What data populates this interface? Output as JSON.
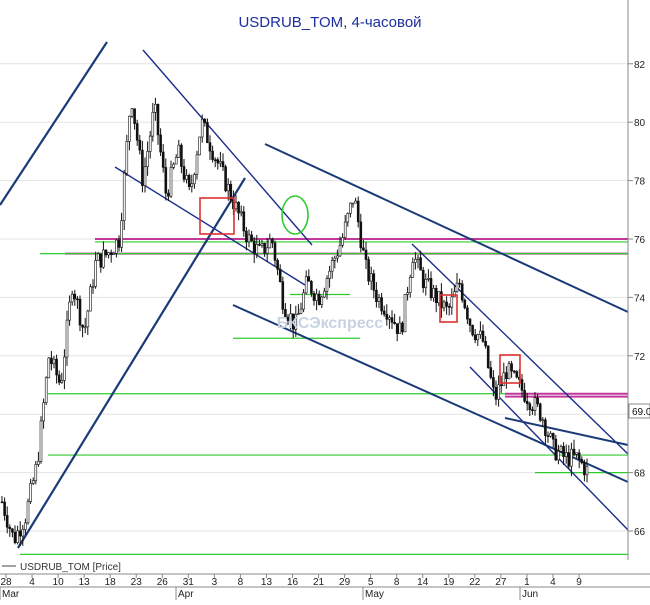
{
  "chart_data": {
    "type": "candlestick",
    "title": "USDRUB_TOM, 4-часовой",
    "watermark": "БКСЭкспресс",
    "legend": "USDRUB_TOM [Price]",
    "last_price_label": "69.0",
    "y_axis": {
      "range": [
        64.8,
        83.2
      ],
      "ticks": [
        66,
        68,
        70,
        72,
        74,
        76,
        78,
        80,
        82
      ]
    },
    "x_axis": {
      "day_ticks": [
        "28",
        "4",
        "10",
        "13",
        "18",
        "23",
        "26",
        "31",
        "3",
        "8",
        "13",
        "16",
        "21",
        "29",
        "5",
        "8",
        "14",
        "19",
        "22",
        "27",
        "1",
        "4",
        "9"
      ],
      "month_labels": [
        "Mar",
        "Apr",
        "May",
        "Jun"
      ]
    },
    "price_path": [
      [
        0,
        67.0
      ],
      [
        1,
        65.7
      ],
      [
        2,
        66.5
      ],
      [
        3,
        68.3
      ],
      [
        4,
        72.0
      ],
      [
        5,
        71.0
      ],
      [
        6,
        74.5
      ],
      [
        7,
        72.8
      ],
      [
        8,
        75.2
      ],
      [
        9,
        75.5
      ],
      [
        10,
        76.0
      ],
      [
        11,
        81.0
      ],
      [
        12,
        78.0
      ],
      [
        13,
        80.5
      ],
      [
        14,
        77.5
      ],
      [
        15,
        79.0
      ],
      [
        16,
        77.5
      ],
      [
        17,
        80.0
      ],
      [
        18,
        79.0
      ],
      [
        19,
        78.0
      ],
      [
        20,
        77.0
      ],
      [
        21,
        76.0
      ],
      [
        22,
        75.5
      ],
      [
        23,
        76.0
      ],
      [
        24,
        73.8
      ],
      [
        25,
        73.0
      ],
      [
        26,
        74.5
      ],
      [
        27,
        74.0
      ],
      [
        28,
        75.0
      ],
      [
        29,
        76.0
      ],
      [
        30,
        77.5
      ],
      [
        31,
        75.0
      ],
      [
        32,
        74.0
      ],
      [
        33,
        73.5
      ],
      [
        34,
        72.8
      ],
      [
        35,
        75.5
      ],
      [
        36,
        74.5
      ],
      [
        37,
        74.0
      ],
      [
        38,
        73.5
      ],
      [
        39,
        74.5
      ],
      [
        40,
        73.0
      ],
      [
        41,
        72.5
      ],
      [
        42,
        70.5
      ],
      [
        43,
        71.5
      ],
      [
        44,
        71.0
      ],
      [
        45,
        70.5
      ],
      [
        46,
        70.0
      ],
      [
        47,
        68.8
      ],
      [
        48,
        68.5
      ],
      [
        49,
        68.5
      ],
      [
        50,
        68.0
      ],
      [
        51,
        68.8
      ],
      [
        52,
        68.5
      ]
    ],
    "levels": [
      {
        "y": 76.0,
        "color": "#c0399a"
      },
      {
        "y": 75.9,
        "color": "#2fcc2f"
      },
      {
        "y": 75.5,
        "color": "#c0399a"
      },
      {
        "y": 75.5,
        "color": "#2fcc2f"
      },
      {
        "y": 74.1,
        "color": "#2fcc2f"
      },
      {
        "y": 72.6,
        "color": "#2fcc2f"
      },
      {
        "y": 70.7,
        "color": "#2fcc2f"
      },
      {
        "y": 70.7,
        "color": "#c0399a"
      },
      {
        "y": 70.6,
        "color": "#c0399a"
      },
      {
        "y": 68.6,
        "color": "#2fcc2f"
      },
      {
        "y": 68.0,
        "color": "#2fcc2f"
      },
      {
        "y": 65.2,
        "color": "#2fcc2f"
      }
    ],
    "colors": {
      "trend": "#1a3a78",
      "channel": "#1a2d8a",
      "level": "#2fcc2f",
      "resistance": "#c0399a",
      "marker": "#e03030",
      "title": "#1c2f9c"
    }
  }
}
